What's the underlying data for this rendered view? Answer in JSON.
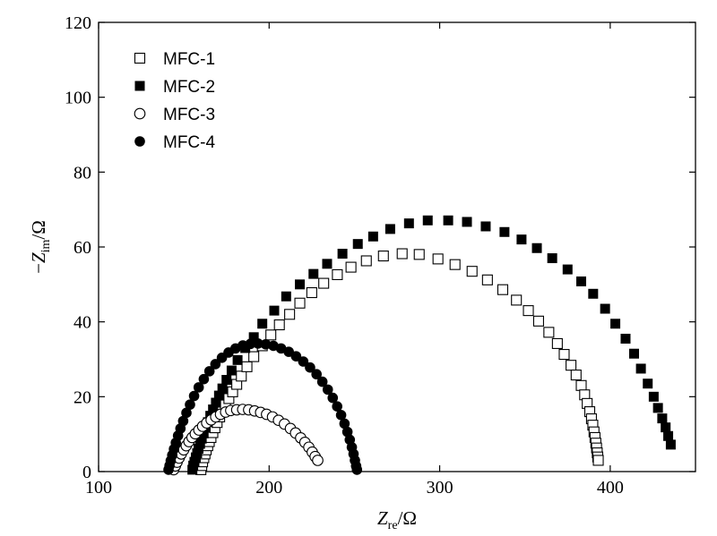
{
  "chart_data": {
    "type": "scatter",
    "xlabel": {
      "main": "Z",
      "sub": "re",
      "unit": "/Ω"
    },
    "ylabel": {
      "prefix": "−",
      "main": "Z",
      "sub": "im",
      "unit": "/Ω"
    },
    "xlim": [
      100,
      450
    ],
    "ylim": [
      0,
      120
    ],
    "xticks": [
      100,
      200,
      300,
      400
    ],
    "yticks": [
      0,
      20,
      40,
      60,
      80,
      100,
      120
    ],
    "grid": false,
    "legend": "top-left",
    "series": [
      {
        "name": "MFC-1",
        "marker": "square-open",
        "points": [
          [
            160,
            0.5
          ],
          [
            160.5,
            1.6
          ],
          [
            161,
            2.6
          ],
          [
            161.7,
            3.7
          ],
          [
            162.4,
            4.7
          ],
          [
            163.1,
            5.8
          ],
          [
            164,
            6.9
          ],
          [
            164.9,
            8.0
          ],
          [
            165.9,
            9.1
          ],
          [
            167.0,
            10.4
          ],
          [
            168.2,
            11.7
          ],
          [
            169.5,
            13.1
          ],
          [
            171,
            14.6
          ],
          [
            172.6,
            16.2
          ],
          [
            174.4,
            17.8
          ],
          [
            176.4,
            19.5
          ],
          [
            178.6,
            21.3
          ],
          [
            181,
            23.3
          ],
          [
            183.7,
            25.5
          ],
          [
            187,
            28
          ],
          [
            191,
            30.7
          ],
          [
            196,
            33.6
          ],
          [
            201,
            36.5
          ],
          [
            206,
            39.2
          ],
          [
            212,
            42
          ],
          [
            218,
            45
          ],
          [
            225,
            47.8
          ],
          [
            232,
            50.3
          ],
          [
            240,
            52.6
          ],
          [
            248,
            54.6
          ],
          [
            257,
            56.3
          ],
          [
            267,
            57.6
          ],
          [
            278,
            58.2
          ],
          [
            288,
            58.0
          ],
          [
            299,
            56.8
          ],
          [
            309,
            55.3
          ],
          [
            319,
            53.5
          ],
          [
            328,
            51.2
          ],
          [
            337,
            48.6
          ],
          [
            345,
            45.8
          ],
          [
            352,
            43
          ],
          [
            358,
            40.2
          ],
          [
            364,
            37.2
          ],
          [
            369,
            34.2
          ],
          [
            373,
            31.3
          ],
          [
            377,
            28.4
          ],
          [
            380,
            25.8
          ],
          [
            383,
            23
          ],
          [
            385,
            20.5
          ],
          [
            386.5,
            18.2
          ],
          [
            388,
            16
          ],
          [
            389,
            14.1
          ],
          [
            389.8,
            12.4
          ],
          [
            390.5,
            10.6
          ],
          [
            391.1,
            9.1
          ],
          [
            391.6,
            7.6
          ],
          [
            392,
            6.3
          ],
          [
            392.4,
            5
          ],
          [
            392.7,
            3.9
          ],
          [
            393,
            3
          ]
        ]
      },
      {
        "name": "MFC-2",
        "marker": "square-filled",
        "points": [
          [
            155,
            0.5
          ],
          [
            155.5,
            1.6
          ],
          [
            156.2,
            2.6
          ],
          [
            157,
            3.8
          ],
          [
            157.8,
            4.9
          ],
          [
            158.6,
            6.1
          ],
          [
            159.5,
            7.4
          ],
          [
            160.5,
            8.8
          ],
          [
            161.6,
            10.2
          ],
          [
            162.8,
            11.7
          ],
          [
            164.1,
            13.2
          ],
          [
            165.5,
            14.9
          ],
          [
            167.1,
            16.6
          ],
          [
            168.8,
            18.4
          ],
          [
            170.6,
            20.3
          ],
          [
            172.6,
            22.2
          ],
          [
            175,
            24.5
          ],
          [
            178,
            27
          ],
          [
            181.5,
            29.8
          ],
          [
            186,
            33
          ],
          [
            191,
            35.9
          ],
          [
            196,
            39.5
          ],
          [
            203,
            43
          ],
          [
            210,
            46.8
          ],
          [
            218,
            50
          ],
          [
            226,
            52.8
          ],
          [
            234,
            55.5
          ],
          [
            243,
            58.2
          ],
          [
            252,
            60.8
          ],
          [
            261,
            62.8
          ],
          [
            271,
            64.8
          ],
          [
            282,
            66.3
          ],
          [
            293,
            67.1
          ],
          [
            305,
            67.1
          ],
          [
            316,
            66.7
          ],
          [
            327,
            65.5
          ],
          [
            338,
            64
          ],
          [
            348,
            62
          ],
          [
            357,
            59.7
          ],
          [
            366,
            57
          ],
          [
            375,
            54
          ],
          [
            383,
            50.8
          ],
          [
            390,
            47.5
          ],
          [
            397,
            43.5
          ],
          [
            403,
            39.5
          ],
          [
            409,
            35.5
          ],
          [
            414,
            31.5
          ],
          [
            418,
            27.5
          ],
          [
            422,
            23.5
          ],
          [
            425.5,
            20
          ],
          [
            428,
            17
          ],
          [
            430.5,
            14.2
          ],
          [
            432.5,
            11.8
          ],
          [
            434,
            9.5
          ],
          [
            435.5,
            7.2
          ]
        ]
      },
      {
        "name": "MFC-3",
        "marker": "circle-open",
        "points": [
          [
            144,
            0.5
          ],
          [
            145,
            1.5
          ],
          [
            146,
            2.5
          ],
          [
            147.2,
            3.6
          ],
          [
            148.5,
            4.7
          ],
          [
            149.9,
            5.8
          ],
          [
            151.4,
            6.9
          ],
          [
            153,
            8
          ],
          [
            154.8,
            9.1
          ],
          [
            156.7,
            10.1
          ],
          [
            158.8,
            11.1
          ],
          [
            161,
            12.1
          ],
          [
            163.4,
            13
          ],
          [
            166,
            13.8
          ],
          [
            168.7,
            14.6
          ],
          [
            171.5,
            15.3
          ],
          [
            174.5,
            15.9
          ],
          [
            177.5,
            16.3
          ],
          [
            181,
            16.5
          ],
          [
            184.5,
            16.6
          ],
          [
            188,
            16.5
          ],
          [
            191.5,
            16.2
          ],
          [
            195,
            15.8
          ],
          [
            198.5,
            15.3
          ],
          [
            202,
            14.6
          ],
          [
            205.5,
            13.7
          ],
          [
            209,
            12.7
          ],
          [
            212.5,
            11.5
          ],
          [
            215.5,
            10.3
          ],
          [
            218.5,
            9
          ],
          [
            221,
            7.8
          ],
          [
            223.3,
            6.5
          ],
          [
            225.3,
            5.2
          ],
          [
            227,
            4
          ],
          [
            228.5,
            3
          ]
        ]
      },
      {
        "name": "MFC-4",
        "marker": "circle-filled",
        "points": [
          [
            141,
            0.5
          ],
          [
            141.6,
            1.6
          ],
          [
            142.3,
            2.9
          ],
          [
            143.2,
            4.4
          ],
          [
            144.2,
            6
          ],
          [
            145.3,
            7.7
          ],
          [
            146.6,
            9.6
          ],
          [
            148,
            11.5
          ],
          [
            149.6,
            13.5
          ],
          [
            151.5,
            15.7
          ],
          [
            153.6,
            17.9
          ],
          [
            156,
            20.2
          ],
          [
            158.7,
            22.5
          ],
          [
            161.7,
            24.7
          ],
          [
            165,
            26.8
          ],
          [
            168.5,
            28.7
          ],
          [
            172.3,
            30.4
          ],
          [
            176.2,
            31.8
          ],
          [
            180.3,
            32.9
          ],
          [
            184.6,
            33.7
          ],
          [
            189,
            34.1
          ],
          [
            193.5,
            34.2
          ],
          [
            198,
            34
          ],
          [
            202.5,
            33.6
          ],
          [
            207,
            32.9
          ],
          [
            211.5,
            32
          ],
          [
            215.8,
            30.8
          ],
          [
            220,
            29.4
          ],
          [
            224,
            27.8
          ],
          [
            227.8,
            26
          ],
          [
            231.2,
            24
          ],
          [
            234.4,
            21.9
          ],
          [
            237.3,
            19.7
          ],
          [
            239.9,
            17.4
          ],
          [
            242.2,
            15.1
          ],
          [
            244.2,
            12.8
          ],
          [
            245.9,
            10.6
          ],
          [
            247.3,
            8.5
          ],
          [
            248.5,
            6.5
          ],
          [
            249.5,
            4.7
          ],
          [
            250.3,
            3
          ],
          [
            251,
            1.5
          ],
          [
            251.5,
            0.5
          ]
        ]
      }
    ]
  }
}
